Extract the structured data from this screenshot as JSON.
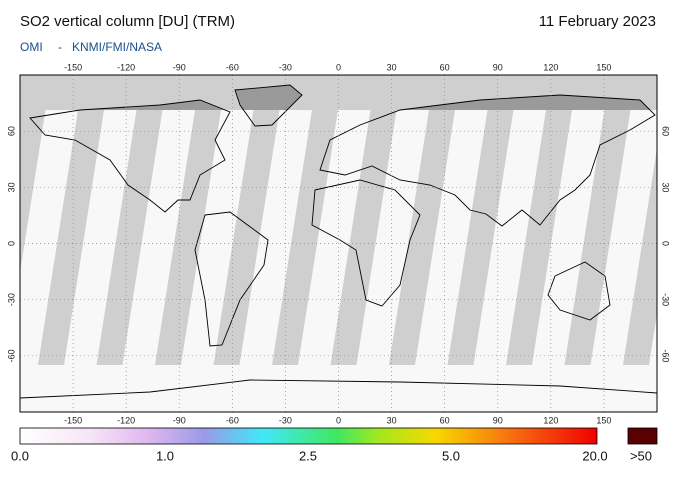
{
  "header": {
    "title": "SO2 vertical column [DU] (TRM)",
    "date": "11 February 2023",
    "source_left": "OMI",
    "source_sep": "-",
    "source_right": "KNMI/FMI/NASA"
  },
  "map": {
    "lonlim": [
      -180,
      180
    ],
    "latlim": [
      -90,
      90
    ],
    "lon_ticks": [
      -150,
      -120,
      -90,
      -60,
      -30,
      0,
      30,
      60,
      90,
      120,
      150
    ],
    "lat_ticks": [
      60,
      30,
      0,
      -30,
      -60
    ]
  },
  "colorbar": {
    "labels": [
      "0.0",
      "1.0",
      "2.5",
      "5.0",
      "20.0"
    ],
    "over_label": ">50"
  }
}
